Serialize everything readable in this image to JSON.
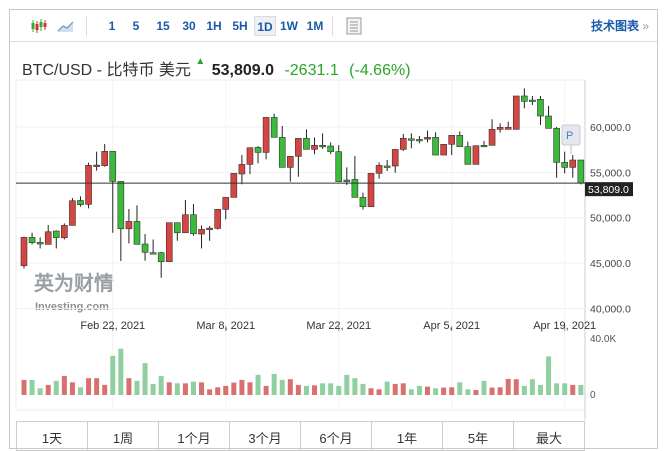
{
  "toolbar": {
    "intervals": [
      "1",
      "5",
      "15",
      "30",
      "1H",
      "5H",
      "1D",
      "1W",
      "1M"
    ],
    "active_interval": "1D",
    "tech_chart_label": "技术图表",
    "tech_chart_arrow": "»"
  },
  "quote": {
    "symbol": "BTC/USD - 比特币 美元",
    "arrow": "▲",
    "price": "53,809.0",
    "change": "-2631.1",
    "change_pct": "(-4.66%)"
  },
  "colors": {
    "up": "#d64541",
    "down": "#3cba3c",
    "vol_up": "#d9706f",
    "vol_down": "#8fcfa0",
    "link": "#1a5aa8"
  },
  "watermark": {
    "cn": "英为财情",
    "en": "Investing.com"
  },
  "marker_label": "P",
  "range_tabs": [
    "1天",
    "1周",
    "1个月",
    "3个月",
    "6个月",
    "1年",
    "5年",
    "最大"
  ],
  "chart_data": {
    "type": "candlestick",
    "y_ticks": [
      "60,000.0",
      "55,000.0",
      "50,000.0",
      "45,000.0",
      "40,000.0"
    ],
    "y_tick_values": [
      60000,
      55000,
      50000,
      45000,
      40000
    ],
    "last_price_label": "53,809.0",
    "last_price": 53809,
    "x_labels": [
      {
        "label": "Feb 22, 2021",
        "index": 11
      },
      {
        "label": "Mar 8, 2021",
        "index": 25
      },
      {
        "label": "Mar 22, 2021",
        "index": 39
      },
      {
        "label": "Apr 5, 2021",
        "index": 53
      },
      {
        "label": "Apr 19, 2021",
        "index": 67
      }
    ],
    "volume_ticks": [
      "40.0K",
      "0"
    ],
    "volume_unit": "K",
    "ohlc": [
      [
        44700,
        47900,
        44400,
        47830
      ],
      [
        47830,
        48340,
        47060,
        47240
      ],
      [
        47280,
        47830,
        46610,
        47100
      ],
      [
        47060,
        49190,
        47060,
        48450
      ],
      [
        48530,
        48600,
        46610,
        47790
      ],
      [
        47790,
        49370,
        47600,
        49150
      ],
      [
        49150,
        52170,
        49150,
        51870
      ],
      [
        51900,
        52350,
        51210,
        51430
      ],
      [
        51470,
        56060,
        51030,
        55770
      ],
      [
        55770,
        57280,
        55180,
        55800
      ],
      [
        55740,
        58120,
        55620,
        57315
      ],
      [
        57315,
        57315,
        48340,
        54000
      ],
      [
        54000,
        54000,
        45220,
        48780
      ],
      [
        48780,
        50950,
        47170,
        49590
      ],
      [
        49590,
        51360,
        47060,
        47060
      ],
      [
        47100,
        48200,
        45260,
        46180
      ],
      [
        46140,
        47600,
        46050,
        46100
      ],
      [
        46140,
        46250,
        43380,
        45150
      ],
      [
        45150,
        49450,
        45150,
        49450
      ],
      [
        49450,
        49450,
        47460,
        48340
      ],
      [
        48340,
        51950,
        48340,
        50330
      ],
      [
        50330,
        51500,
        48010,
        48230
      ],
      [
        48200,
        49150,
        46610,
        48710
      ],
      [
        48800,
        49080,
        47460,
        48850
      ],
      [
        48820,
        50920,
        48700,
        50920
      ],
      [
        50920,
        52240,
        49810,
        52240
      ],
      [
        52240,
        54890,
        52240,
        54890
      ],
      [
        54820,
        56910,
        53680,
        55880
      ],
      [
        55880,
        57720,
        54810,
        57720
      ],
      [
        57750,
        57900,
        55990,
        57200
      ],
      [
        57200,
        61060,
        56430,
        61060
      ],
      [
        61060,
        61470,
        58860,
        58860
      ],
      [
        58860,
        60110,
        55550,
        55550
      ],
      [
        55550,
        56770,
        53970,
        56770
      ],
      [
        56770,
        58750,
        54520,
        58750
      ],
      [
        58750,
        59740,
        57540,
        57540
      ],
      [
        57540,
        58850,
        57000,
        57980
      ],
      [
        57980,
        59300,
        57600,
        57980
      ],
      [
        57900,
        58300,
        57000,
        57280
      ],
      [
        57280,
        58000,
        53970,
        53970
      ],
      [
        54150,
        55550,
        53600,
        54150
      ],
      [
        54220,
        56800,
        52240,
        52240
      ],
      [
        52240,
        52760,
        50900,
        51210
      ],
      [
        51210,
        54890,
        51210,
        54890
      ],
      [
        54890,
        56100,
        54300,
        55770
      ],
      [
        55700,
        56360,
        55150,
        55700
      ],
      [
        55700,
        57530,
        54960,
        57530
      ],
      [
        57530,
        59230,
        57350,
        58750
      ],
      [
        58700,
        59300,
        57650,
        58700
      ],
      [
        58630,
        59000,
        58200,
        58630
      ],
      [
        58660,
        59600,
        58300,
        58860
      ],
      [
        58860,
        59410,
        56910,
        56910
      ],
      [
        56910,
        58090,
        56900,
        58090
      ],
      [
        58090,
        59080,
        56900,
        59080
      ],
      [
        59080,
        59500,
        57830,
        57830
      ],
      [
        57830,
        58380,
        55880,
        55880
      ],
      [
        55880,
        57940,
        55880,
        57940
      ],
      [
        57980,
        58460,
        57800,
        57980
      ],
      [
        57980,
        60850,
        57980,
        59740
      ],
      [
        59740,
        60400,
        59380,
        59960
      ],
      [
        59740,
        60590,
        59740,
        59960
      ],
      [
        59740,
        63420,
        59740,
        63420
      ],
      [
        63420,
        64260,
        62060,
        62830
      ],
      [
        62970,
        63420,
        62430,
        62830
      ],
      [
        63050,
        63420,
        60220,
        61210
      ],
      [
        61210,
        62320,
        59850,
        59850
      ],
      [
        59850,
        60000,
        54400,
        56100
      ],
      [
        56100,
        57280,
        54890,
        55550
      ],
      [
        55550,
        56910,
        54410,
        56360
      ],
      [
        56360,
        56360,
        53670,
        53809
      ]
    ],
    "volume_k": [
      10.6,
      10.6,
      4.7,
      7.1,
      9.9,
      13.4,
      8.9,
      5.4,
      11.8,
      11.8,
      7.1,
      27.5,
      32.5,
      11.8,
      9.9,
      22.4,
      7.8,
      13.4,
      8.9,
      8.2,
      8.2,
      9.4,
      8.9,
      4.0,
      5.4,
      6.4,
      8.7,
      10.6,
      8.9,
      14.1,
      6.4,
      14.8,
      10.6,
      11.1,
      7.1,
      6.4,
      6.8,
      8.2,
      8.2,
      6.4,
      14.1,
      11.8,
      7.8,
      4.7,
      4.0,
      9.4,
      7.8,
      8.2,
      4.0,
      6.4,
      5.9,
      4.7,
      5.2,
      5.4,
      8.9,
      4.0,
      3.5,
      9.9,
      5.2,
      5.4,
      11.3,
      11.1,
      6.4,
      11.1,
      7.1,
      27.1,
      8.2,
      8.2,
      7.1,
      7.0
    ]
  }
}
